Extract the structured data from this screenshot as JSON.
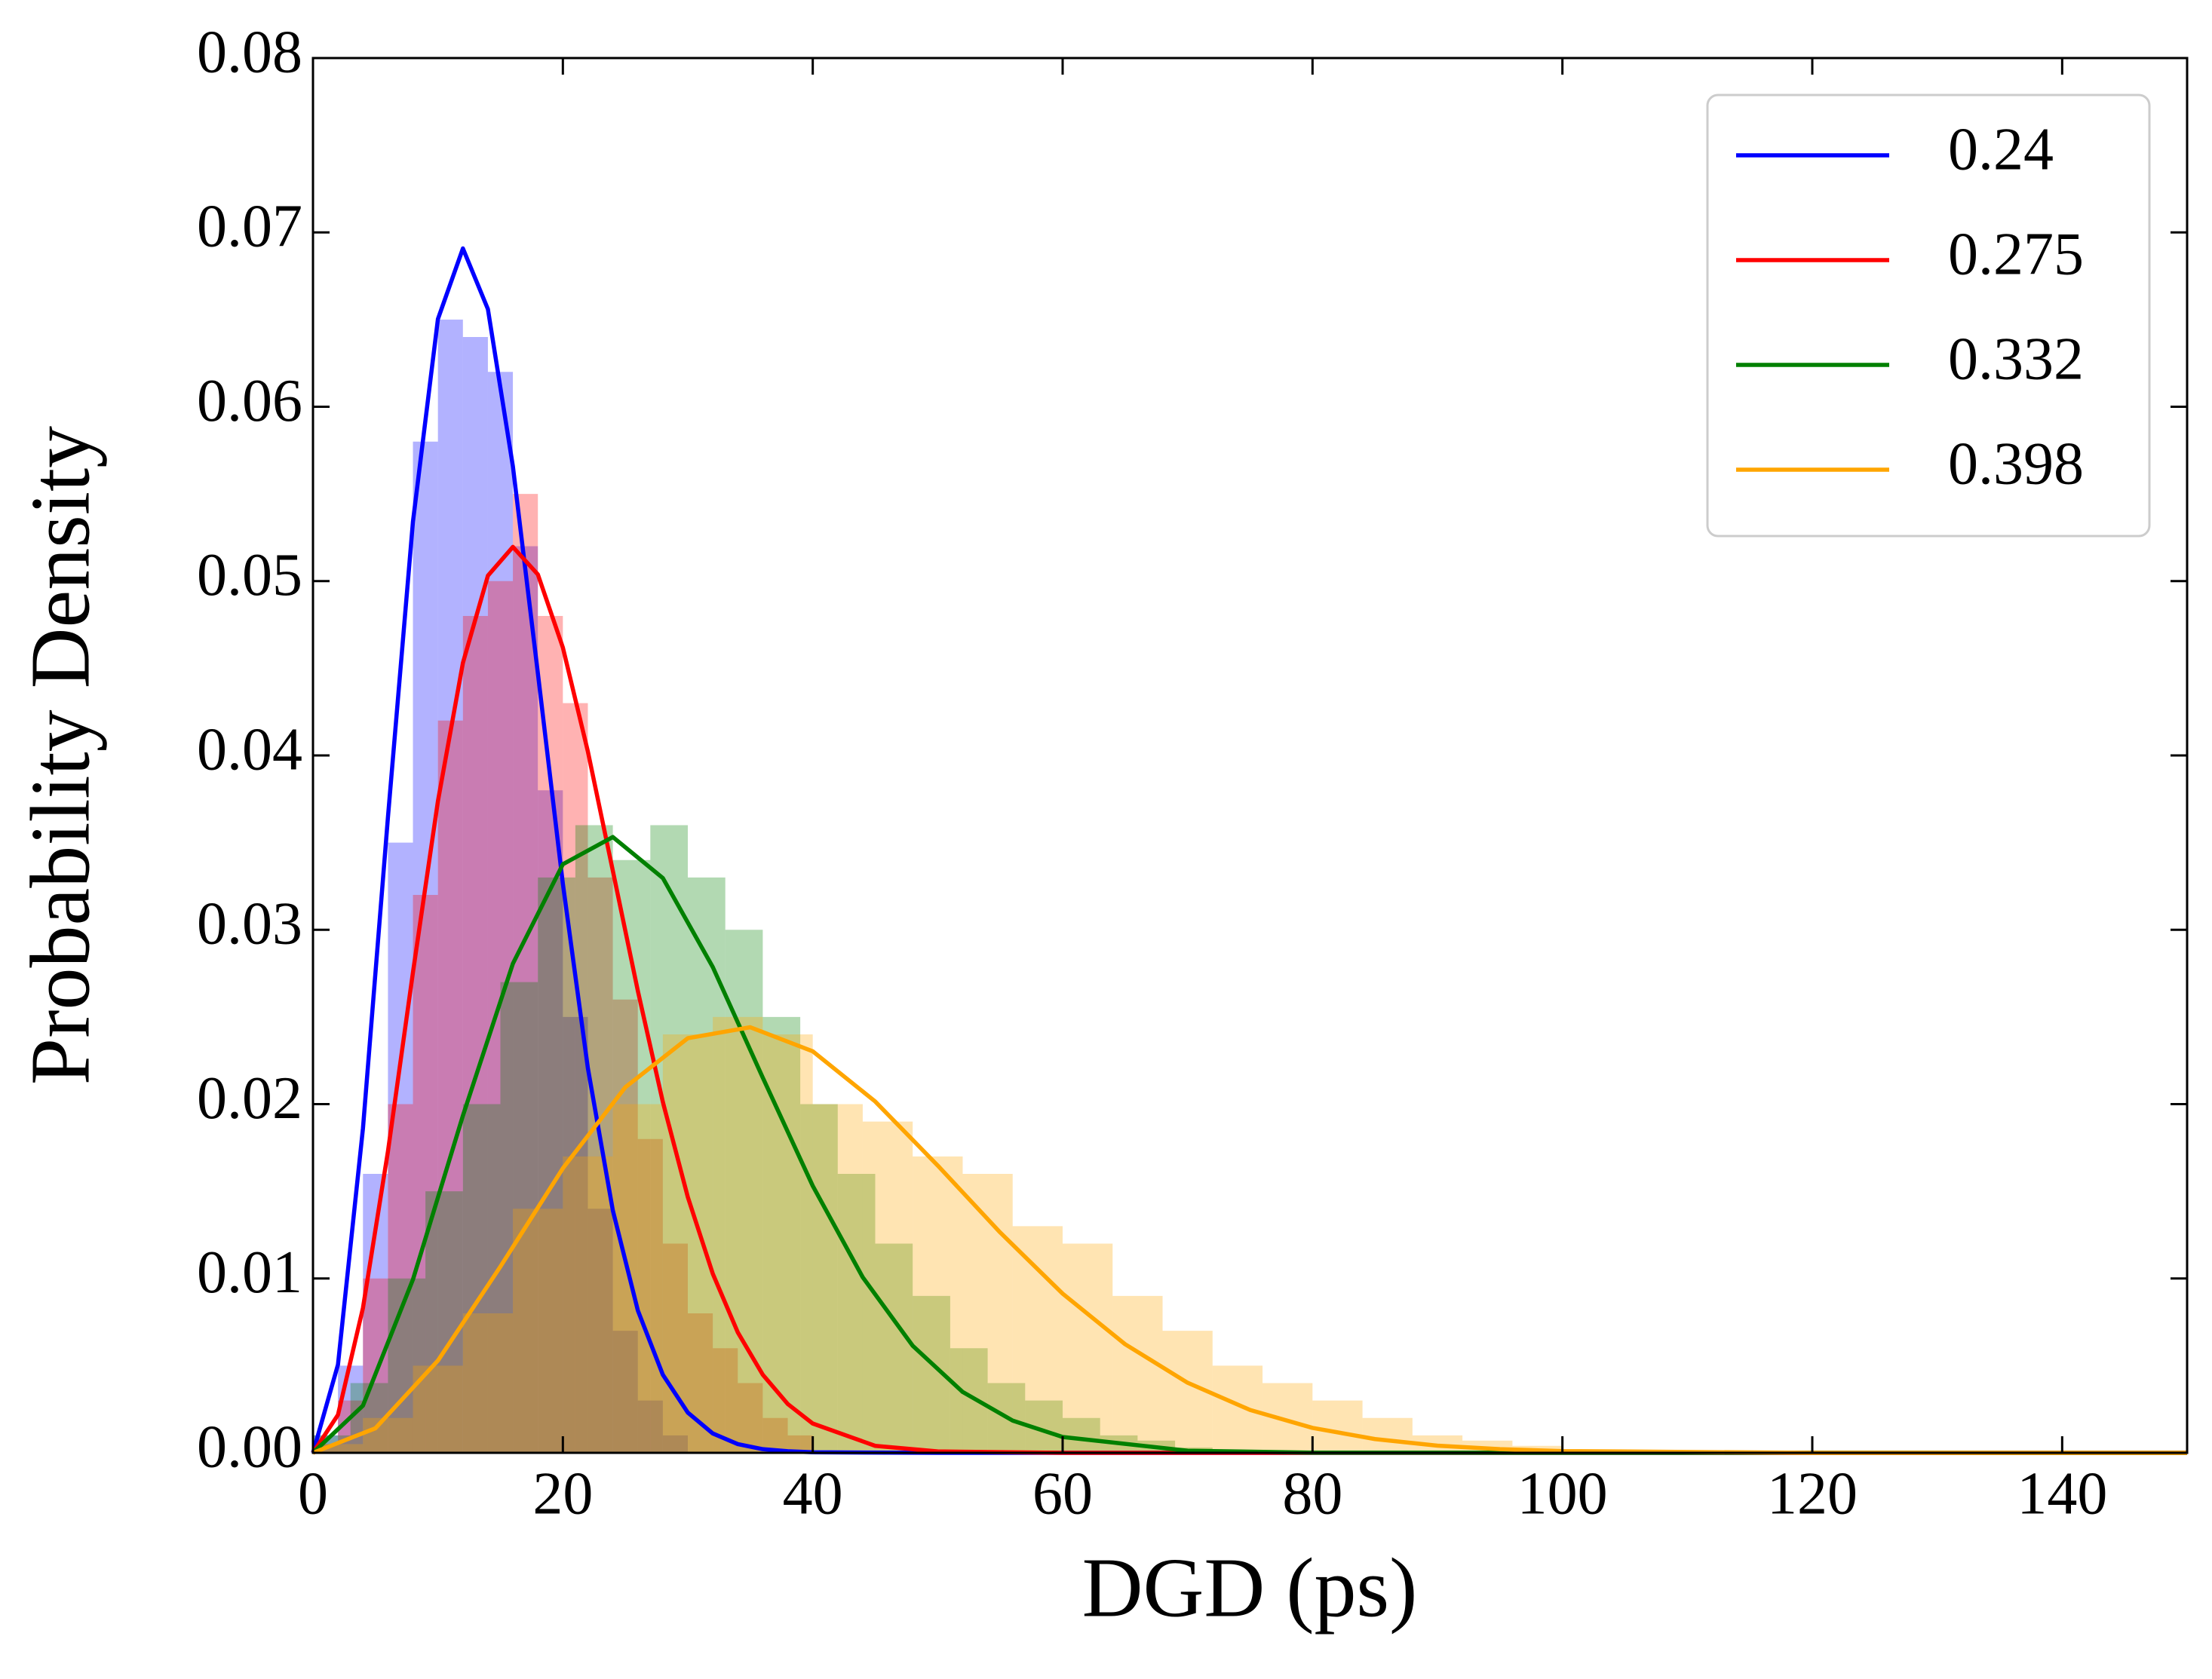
{
  "chart_data": {
    "type": "histogram",
    "x_label": "DGD (ps)",
    "y_label": "Probability Density",
    "xlim": [
      0,
      150
    ],
    "xticks": [
      0,
      20,
      40,
      60,
      80,
      100,
      120,
      140
    ],
    "ylim": [
      0,
      0.08
    ],
    "yticks": [
      {
        "value": 0,
        "label": "0.00"
      },
      0.01,
      0.02,
      0.03,
      0.04,
      0.05,
      0.06,
      0.07,
      0.08
    ],
    "legend": "upper right",
    "series": [
      {
        "name": "0.24",
        "color": "#0000ff",
        "bins": [
          0,
          2,
          4,
          6,
          8,
          10,
          12,
          14,
          16,
          18,
          20,
          22,
          24,
          26,
          28,
          30
        ],
        "values": [
          0.001,
          0.005,
          0.016,
          0.035,
          0.058,
          0.065,
          0.064,
          0.062,
          0.052,
          0.038,
          0.025,
          0.014,
          0.007,
          0.003,
          0.001
        ],
        "fit": {
          "x": [
            0,
            2,
            4,
            6,
            8,
            10,
            12,
            14,
            16,
            18,
            20,
            22,
            24,
            26,
            28,
            30,
            32,
            34,
            36,
            38,
            40,
            50,
            150
          ],
          "values": [
            0,
            0.00506,
            0.01861,
            0.03646,
            0.0534,
            0.06503,
            0.06908,
            0.0656,
            0.05658,
            0.04471,
            0.03264,
            0.02207,
            0.0139,
            0.00817,
            0.00448,
            0.00231,
            0.00111,
            0.0005,
            0.00021,
            9e-05,
            3e-05,
            0,
            0
          ]
        }
      },
      {
        "name": "0.275",
        "color": "#ff0000",
        "bins": [
          0,
          2,
          4,
          6,
          8,
          10,
          12,
          14,
          16,
          18,
          20,
          22,
          24,
          26,
          28,
          30,
          32,
          34,
          36,
          38,
          40
        ],
        "values": [
          0.0005,
          0.003,
          0.01,
          0.02,
          0.032,
          0.042,
          0.048,
          0.05,
          0.055,
          0.048,
          0.043,
          0.033,
          0.026,
          0.018,
          0.012,
          0.008,
          0.006,
          0.004,
          0.002,
          0.001
        ],
        "fit": {
          "x": [
            0,
            2,
            4,
            6,
            8,
            10,
            12,
            14,
            16,
            18,
            20,
            22,
            24,
            26,
            28,
            30,
            32,
            34,
            36,
            38,
            40,
            45,
            50,
            60,
            150
          ],
          "values": [
            0,
            0.00218,
            0.00831,
            0.01729,
            0.02755,
            0.03738,
            0.04531,
            0.05031,
            0.05196,
            0.05038,
            0.04619,
            0.04023,
            0.03338,
            0.0265,
            0.02013,
            0.01467,
            0.01027,
            0.00691,
            0.00448,
            0.0028,
            0.00168,
            0.0004,
            8e-05,
            0,
            0
          ]
        }
      },
      {
        "name": "0.332",
        "color": "#008000",
        "bins": [
          0,
          3,
          6,
          9,
          12,
          15,
          18,
          21,
          24,
          27,
          30,
          33,
          36,
          39,
          42,
          45,
          48,
          51,
          54,
          57,
          60,
          63,
          66,
          69,
          72
        ],
        "values": [
          0.001,
          0.004,
          0.01,
          0.015,
          0.02,
          0.027,
          0.033,
          0.036,
          0.034,
          0.036,
          0.033,
          0.03,
          0.025,
          0.02,
          0.016,
          0.012,
          0.009,
          0.006,
          0.004,
          0.003,
          0.002,
          0.001,
          0.0007,
          0.0003
        ],
        "fit": {
          "x": [
            0,
            4,
            8,
            12,
            16,
            20,
            24,
            28,
            32,
            36,
            40,
            44,
            48,
            52,
            56,
            60,
            70,
            80,
            150
          ],
          "values": [
            0,
            0.00271,
            0.00994,
            0.01934,
            0.02806,
            0.03376,
            0.03532,
            0.03297,
            0.02786,
            0.02152,
            0.01531,
            0.01007,
            0.00614,
            0.00349,
            0.00185,
            0.00091,
            0.00012,
            1e-05,
            0
          ]
        }
      },
      {
        "name": "0.398",
        "color": "#ffa500",
        "bins": [
          0,
          4,
          8,
          12,
          16,
          20,
          24,
          28,
          32,
          36,
          40,
          44,
          48,
          52,
          56,
          60,
          64,
          68,
          72,
          76,
          80,
          84,
          88,
          92,
          96,
          100
        ],
        "values": [
          0.0005,
          0.002,
          0.005,
          0.008,
          0.014,
          0.017,
          0.02,
          0.024,
          0.025,
          0.024,
          0.02,
          0.019,
          0.017,
          0.016,
          0.013,
          0.012,
          0.009,
          0.007,
          0.005,
          0.004,
          0.003,
          0.002,
          0.001,
          0.0007,
          0.0004
        ],
        "fit": {
          "x": [
            0,
            5,
            10,
            15,
            20,
            25,
            30,
            35,
            40,
            45,
            50,
            55,
            60,
            65,
            70,
            75,
            80,
            85,
            90,
            95,
            100,
            120,
            150
          ],
          "values": [
            0,
            0.00141,
            0.00529,
            0.01068,
            0.01632,
            0.02097,
            0.02378,
            0.02441,
            0.02303,
            0.02015,
            0.01648,
            0.01264,
            0.00913,
            0.00623,
            0.00402,
            0.00246,
            0.00143,
            0.00079,
            0.00041,
            0.00021,
            0.0001,
            0,
            0
          ]
        }
      }
    ]
  }
}
